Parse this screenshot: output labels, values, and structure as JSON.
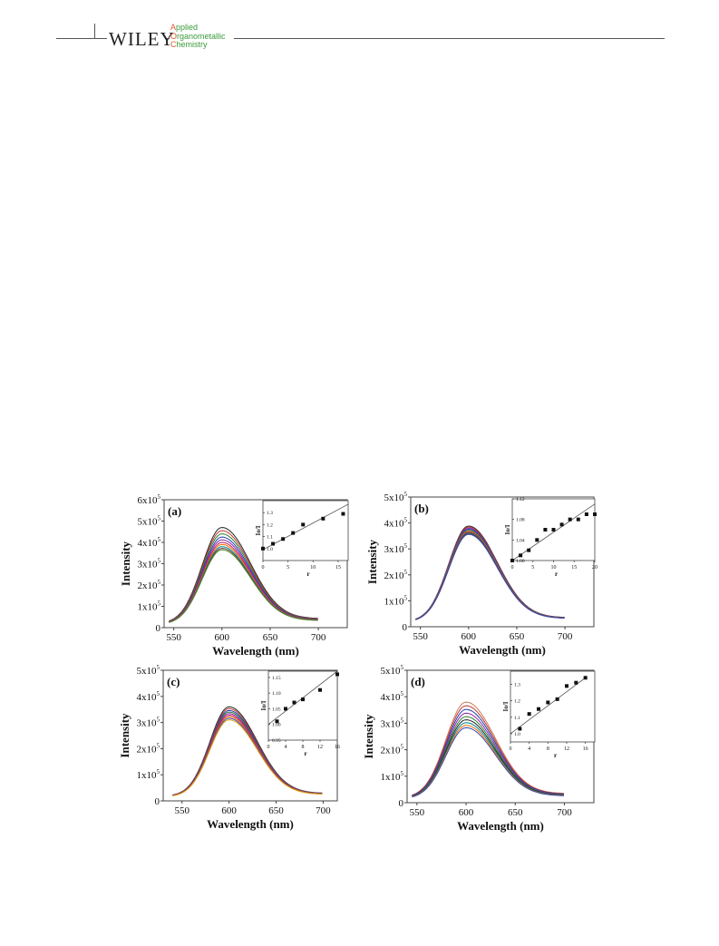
{
  "header": {
    "publisher": "WILEY",
    "journal_lines": [
      {
        "cap": "A",
        "rest": "pplied"
      },
      {
        "cap": "O",
        "rest": "rganometallic"
      },
      {
        "cap": "C",
        "rest": "hemistry"
      }
    ]
  },
  "chart_data": [
    {
      "type": "line",
      "panel_label": "(a)",
      "xlabel": "Wavelength (nm)",
      "ylabel": "Intensity",
      "xlim": [
        540,
        730
      ],
      "ylim": [
        0,
        600000
      ],
      "x_ticks": [
        550,
        600,
        650,
        700
      ],
      "y_ticks": [
        {
          "value": 0,
          "mant": "0",
          "exp": ""
        },
        {
          "value": 100000,
          "mant": "1x10",
          "exp": "5"
        },
        {
          "value": 200000,
          "mant": "2x10",
          "exp": "5"
        },
        {
          "value": 300000,
          "mant": "3x10",
          "exp": "5"
        },
        {
          "value": 400000,
          "mant": "4x10",
          "exp": "5"
        },
        {
          "value": 500000,
          "mant": "5x10",
          "exp": "5"
        },
        {
          "value": 600000,
          "mant": "6x10",
          "exp": "5"
        }
      ],
      "curve": {
        "x_start": 545,
        "x_end": 700,
        "peak_x": 600,
        "start_frac": 0.04,
        "end_frac": 0.09
      },
      "peaks": [
        470000,
        455000,
        440000,
        425000,
        412000,
        400000,
        390000,
        380000,
        372000,
        365000
      ],
      "colors": [
        "#222222",
        "#c0392b",
        "#2e7d32",
        "#1f3fb5",
        "#8e24aa",
        "#c2185b",
        "#ef6c00",
        "#00838f",
        "#5d4037",
        "#558b2f"
      ],
      "arrow_x": 578,
      "inset": {
        "xlabel": "r",
        "ylabel": "Io/I",
        "xlim": [
          0,
          17
        ],
        "ylim": [
          0.9,
          1.4
        ],
        "x_ticks": [
          0,
          5,
          10,
          15
        ],
        "y_ticks": [
          {
            "value": 1.0,
            "label": "1.0"
          },
          {
            "value": 1.1,
            "label": "1.1"
          },
          {
            "value": 1.2,
            "label": "1.2"
          },
          {
            "value": 1.3,
            "label": "1.3"
          }
        ],
        "points": [
          [
            0,
            1.0
          ],
          [
            2,
            1.04
          ],
          [
            4,
            1.08
          ],
          [
            6,
            1.13
          ],
          [
            8,
            1.2
          ],
          [
            12,
            1.25
          ],
          [
            16,
            1.29
          ]
        ],
        "fit": [
          [
            0,
            0.99
          ],
          [
            17,
            1.37
          ]
        ]
      }
    },
    {
      "type": "line",
      "panel_label": "(b)",
      "xlabel": "Wavelength (nm)",
      "ylabel": "Intensity",
      "xlim": [
        540,
        730
      ],
      "ylim": [
        0,
        500000
      ],
      "x_ticks": [
        550,
        600,
        650,
        700
      ],
      "y_ticks": [
        {
          "value": 0,
          "mant": "0",
          "exp": ""
        },
        {
          "value": 100000,
          "mant": "1x10",
          "exp": "5"
        },
        {
          "value": 200000,
          "mant": "2x10",
          "exp": "5"
        },
        {
          "value": 300000,
          "mant": "3x10",
          "exp": "5"
        },
        {
          "value": 400000,
          "mant": "4x10",
          "exp": "5"
        },
        {
          "value": 500000,
          "mant": "5x10",
          "exp": "5"
        }
      ],
      "curve": {
        "x_start": 545,
        "x_end": 700,
        "peak_x": 600,
        "start_frac": 0.05,
        "end_frac": 0.09
      },
      "peaks": [
        388000,
        384000,
        380000,
        376000,
        372000,
        368000,
        365000,
        362000,
        359000,
        356000
      ],
      "colors": [
        "#222222",
        "#c0392b",
        "#8e24aa",
        "#1f3fb5",
        "#2e7d32",
        "#ef6c00",
        "#c2185b",
        "#00838f",
        "#5d4037",
        "#3949ab"
      ],
      "arrow_x": 576,
      "inset": {
        "xlabel": "r",
        "ylabel": "Io/I",
        "xlim": [
          0,
          20
        ],
        "ylim": [
          1.0,
          1.12
        ],
        "x_ticks": [
          0,
          5,
          10,
          15,
          20
        ],
        "y_ticks": [
          {
            "value": 1.0,
            "label": "1.00"
          },
          {
            "value": 1.04,
            "label": "1.04"
          },
          {
            "value": 1.08,
            "label": "1.08"
          },
          {
            "value": 1.12,
            "label": "1.12"
          }
        ],
        "points": [
          [
            0,
            1.0
          ],
          [
            2,
            1.01
          ],
          [
            4,
            1.02
          ],
          [
            6,
            1.04
          ],
          [
            8,
            1.06
          ],
          [
            10,
            1.06
          ],
          [
            12,
            1.07
          ],
          [
            14,
            1.08
          ],
          [
            16,
            1.08
          ],
          [
            18,
            1.09
          ],
          [
            20,
            1.09
          ]
        ],
        "fit": [
          [
            0,
            1.0
          ],
          [
            20,
            1.11
          ]
        ]
      }
    },
    {
      "type": "line",
      "panel_label": "(c)",
      "xlabel": "Wavelength (nm)",
      "ylabel": "Intensity",
      "xlim": [
        530,
        715
      ],
      "ylim": [
        0,
        500000
      ],
      "x_ticks": [
        550,
        600,
        650,
        700
      ],
      "y_ticks": [
        {
          "value": 0,
          "mant": "0",
          "exp": ""
        },
        {
          "value": 100000,
          "mant": "1x10",
          "exp": "5"
        },
        {
          "value": 200000,
          "mant": "2x10",
          "exp": "5"
        },
        {
          "value": 300000,
          "mant": "3x10",
          "exp": "5"
        },
        {
          "value": 400000,
          "mant": "4x10",
          "exp": "5"
        },
        {
          "value": 500000,
          "mant": "5x10",
          "exp": "5"
        }
      ],
      "curve": {
        "x_start": 540,
        "x_end": 700,
        "peak_x": 600,
        "start_frac": 0.05,
        "end_frac": 0.08
      },
      "peaks": [
        360000,
        353000,
        346000,
        340000,
        334000,
        328000,
        322000,
        316000,
        310000
      ],
      "colors": [
        "#222222",
        "#c0392b",
        "#1f3fb5",
        "#2e7d32",
        "#8e24aa",
        "#c2185b",
        "#ef6c00",
        "#3949ab",
        "#e6a000"
      ],
      "arrow_x": 582,
      "inset": {
        "xlabel": "r",
        "ylabel": "Io/I",
        "xlim": [
          0,
          16
        ],
        "ylim": [
          0.95,
          1.17
        ],
        "x_ticks": [
          0,
          4,
          8,
          12,
          16
        ],
        "y_ticks": [
          {
            "value": 0.95,
            "label": "0.95"
          },
          {
            "value": 1.0,
            "label": "1.00"
          },
          {
            "value": 1.05,
            "label": "1.05"
          },
          {
            "value": 1.1,
            "label": "1.10"
          },
          {
            "value": 1.15,
            "label": "1.15"
          }
        ],
        "points": [
          [
            2,
            1.01
          ],
          [
            4,
            1.05
          ],
          [
            6,
            1.07
          ],
          [
            8,
            1.08
          ],
          [
            12,
            1.11
          ],
          [
            16,
            1.16
          ]
        ],
        "fit": [
          [
            0,
            1.0
          ],
          [
            16,
            1.17
          ]
        ]
      }
    },
    {
      "type": "line",
      "panel_label": "(d)",
      "xlabel": "Wavelength (nm)",
      "ylabel": "Intensity",
      "xlim": [
        540,
        730
      ],
      "ylim": [
        0,
        500000
      ],
      "x_ticks": [
        550,
        600,
        650,
        700
      ],
      "y_ticks": [
        {
          "value": 0,
          "mant": "0",
          "exp": ""
        },
        {
          "value": 100000,
          "mant": "1x10",
          "exp": "5"
        },
        {
          "value": 200000,
          "mant": "2x10",
          "exp": "5"
        },
        {
          "value": 300000,
          "mant": "3x10",
          "exp": "5"
        },
        {
          "value": 400000,
          "mant": "4x10",
          "exp": "5"
        },
        {
          "value": 500000,
          "mant": "5x10",
          "exp": "5"
        }
      ],
      "curve": {
        "x_start": 545,
        "x_end": 700,
        "peak_x": 600,
        "start_frac": 0.05,
        "end_frac": 0.09
      },
      "peaks": [
        380000,
        366000,
        352000,
        338000,
        325000,
        313000,
        302000,
        292000,
        283000
      ],
      "colors": [
        "#c97a5a",
        "#c0392b",
        "#1f3fb5",
        "#8e24aa",
        "#2e7d32",
        "#222222",
        "#00838f",
        "#ef6c00",
        "#3949ab"
      ],
      "arrow_x": 578,
      "inset": {
        "xlabel": "r",
        "ylabel": "Io/I",
        "xlim": [
          0,
          18
        ],
        "ylim": [
          0.95,
          1.38
        ],
        "x_ticks": [
          0,
          4,
          8,
          12,
          16
        ],
        "y_ticks": [
          {
            "value": 1.0,
            "label": "1.0"
          },
          {
            "value": 1.1,
            "label": "1.1"
          },
          {
            "value": 1.2,
            "label": "1.2"
          },
          {
            "value": 1.3,
            "label": "1.3"
          }
        ],
        "points": [
          [
            2,
            1.03
          ],
          [
            4,
            1.12
          ],
          [
            6,
            1.15
          ],
          [
            8,
            1.19
          ],
          [
            10,
            1.21
          ],
          [
            12,
            1.29
          ],
          [
            14,
            1.31
          ],
          [
            16,
            1.34
          ]
        ],
        "fit": [
          [
            0,
            1.0
          ],
          [
            16,
            1.34
          ]
        ]
      }
    }
  ]
}
